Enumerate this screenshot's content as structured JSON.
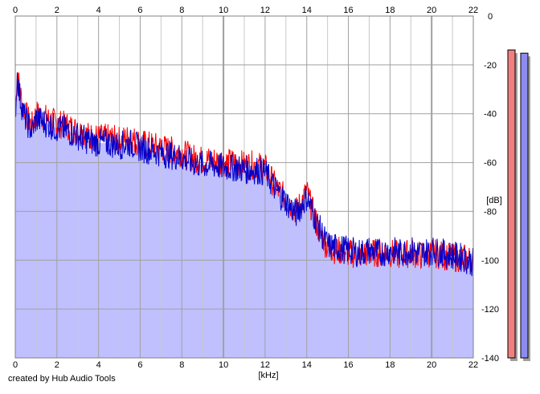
{
  "credit": "created by Hub Audio Tools",
  "chart_data": {
    "type": "line",
    "title": "",
    "xlabel": "[kHz]",
    "ylabel": "[dB]",
    "xlim": [
      0,
      22
    ],
    "ylim": [
      -140,
      0
    ],
    "x_ticks": [
      0,
      2,
      4,
      6,
      8,
      10,
      12,
      14,
      16,
      18,
      20,
      22
    ],
    "y_ticks": [
      0,
      -20,
      -40,
      -60,
      -80,
      -100,
      -120,
      -140
    ],
    "x_tick_labels": [
      "0",
      "2",
      "4",
      "6",
      "8",
      "10",
      "12",
      "14",
      "16",
      "18",
      "20",
      "22"
    ],
    "y_tick_labels": [
      "0",
      "-20",
      "-40",
      "-60",
      "-80",
      "-100",
      "-120",
      "-140"
    ],
    "grid": true,
    "colors": {
      "fill": "#c0c0ff",
      "left_channel": "#ff0000",
      "right_channel": "#0000cc",
      "grid_major": "#a0a0a0",
      "grid_minor": "#c8c8c8",
      "meter_left": "#f08080",
      "meter_right": "#8c8cf0"
    },
    "level_meters": {
      "left": 0.95,
      "right": 0.94
    },
    "series": [
      {
        "color": "#ff0000",
        "x": [
          0.0,
          0.1,
          0.2,
          0.4,
          0.6,
          0.8,
          1.0,
          1.5,
          2.0,
          2.5,
          3.0,
          3.5,
          4.0,
          4.5,
          5.0,
          5.5,
          6.0,
          6.5,
          7.0,
          7.5,
          8.0,
          8.5,
          9.0,
          9.5,
          10.0,
          10.5,
          11.0,
          11.5,
          12.0,
          12.5,
          13.0,
          13.5,
          14.0,
          14.5,
          15.0,
          15.5,
          16.0,
          16.5,
          17.0,
          17.5,
          18.0,
          18.5,
          19.0,
          19.5,
          20.0,
          20.5,
          21.0,
          21.5,
          22.0
        ],
        "y": [
          -38,
          -22,
          -30,
          -38,
          -42,
          -45,
          -40,
          -42,
          -44,
          -45,
          -47,
          -49,
          -50,
          -50,
          -51,
          -50,
          -52,
          -53,
          -54,
          -55,
          -56,
          -58,
          -59,
          -59,
          -60,
          -60,
          -61,
          -61,
          -62,
          -70,
          -75,
          -80,
          -72,
          -86,
          -95,
          -96,
          -97,
          -98,
          -97,
          -97,
          -97,
          -98,
          -97,
          -98,
          -97,
          -98,
          -99,
          -99,
          -100
        ]
      },
      {
        "color": "#0000cc",
        "x": [
          0.0,
          0.1,
          0.2,
          0.4,
          0.6,
          0.8,
          1.0,
          1.5,
          2.0,
          2.5,
          3.0,
          3.5,
          4.0,
          4.5,
          5.0,
          5.5,
          6.0,
          6.5,
          7.0,
          7.5,
          8.0,
          8.5,
          9.0,
          9.5,
          10.0,
          10.5,
          11.0,
          11.5,
          12.0,
          12.5,
          13.0,
          13.5,
          14.0,
          14.5,
          15.0,
          15.5,
          16.0,
          16.5,
          17.0,
          17.5,
          18.0,
          18.5,
          19.0,
          19.5,
          20.0,
          20.5,
          21.0,
          21.5,
          22.0
        ],
        "y": [
          -40,
          -24,
          -32,
          -40,
          -44,
          -47,
          -42,
          -44,
          -46,
          -47,
          -49,
          -51,
          -52,
          -52,
          -53,
          -52,
          -54,
          -55,
          -56,
          -57,
          -58,
          -60,
          -61,
          -61,
          -62,
          -62,
          -63,
          -63,
          -64,
          -71,
          -76,
          -81,
          -74,
          -85,
          -94,
          -95,
          -96,
          -97,
          -96,
          -97,
          -96,
          -97,
          -96,
          -97,
          -96,
          -97,
          -98,
          -99,
          -101
        ]
      }
    ]
  }
}
